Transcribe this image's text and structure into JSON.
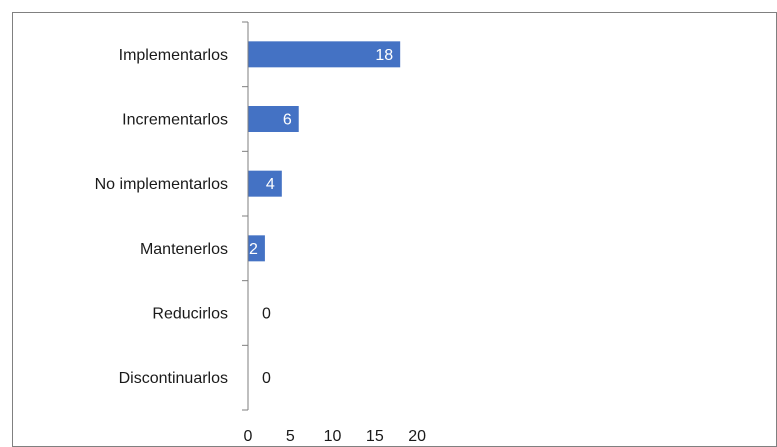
{
  "chart_data": {
    "type": "bar",
    "orientation": "horizontal",
    "categories": [
      "Implementarlos",
      "Incrementarlos",
      "No implementarlos",
      "Mantenerlos",
      "Reducirlos",
      "Discontinuarlos"
    ],
    "values": [
      18,
      6,
      4,
      2,
      0,
      0
    ],
    "data_labels": [
      "18",
      "6",
      "4",
      "2",
      "0",
      "0"
    ],
    "xlim": [
      0,
      23
    ],
    "x_ticks": [
      0,
      5,
      10,
      15,
      20
    ],
    "x_tick_labels": [
      "0",
      "5",
      "10",
      "15",
      "20"
    ],
    "grid": false,
    "legend": "none",
    "colors": {
      "bar": "#4472c4",
      "axis": "#7f7f7f",
      "frame": "#808080",
      "label_inside": "#ffffff",
      "label_outside": "#1a1a1a"
    }
  }
}
